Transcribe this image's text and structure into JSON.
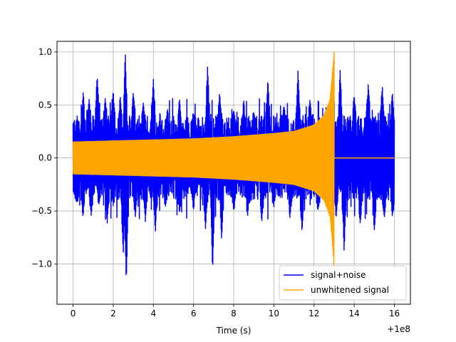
{
  "chart_data": {
    "type": "line",
    "title": "",
    "xlabel": "Time (s)",
    "ylabel": "",
    "x_offset_label": "+1e8",
    "xlim": [
      -0.8,
      16.8
    ],
    "ylim": [
      -1.38,
      1.1
    ],
    "x_ticks": [
      0,
      2,
      4,
      6,
      8,
      10,
      12,
      14,
      16
    ],
    "y_ticks": [
      -1.0,
      -0.5,
      0.0,
      0.5,
      1.0
    ],
    "x_tick_labels": [
      "0",
      "2",
      "4",
      "6",
      "8",
      "10",
      "12",
      "14",
      "16"
    ],
    "y_tick_labels": [
      "−1.0",
      "−0.5",
      "0.0",
      "0.5",
      "1.0"
    ],
    "grid": true,
    "legend_position": "lower-right",
    "series": [
      {
        "name": "signal+noise",
        "color": "#0000ff",
        "x_range": [
          0,
          16
        ],
        "upper_envelope_peaks": [
          {
            "x": 0.2,
            "y": 0.38
          },
          {
            "x": 0.5,
            "y": 0.62
          },
          {
            "x": 0.8,
            "y": 0.55
          },
          {
            "x": 1.2,
            "y": 0.78
          },
          {
            "x": 1.6,
            "y": 0.56
          },
          {
            "x": 2.0,
            "y": 0.64
          },
          {
            "x": 2.35,
            "y": 0.58
          },
          {
            "x": 2.6,
            "y": 1.0
          },
          {
            "x": 3.0,
            "y": 0.62
          },
          {
            "x": 3.5,
            "y": 0.52
          },
          {
            "x": 4.0,
            "y": 0.74
          },
          {
            "x": 4.7,
            "y": 0.46
          },
          {
            "x": 5.3,
            "y": 0.55
          },
          {
            "x": 6.0,
            "y": 0.42
          },
          {
            "x": 6.7,
            "y": 0.87
          },
          {
            "x": 7.3,
            "y": 0.62
          },
          {
            "x": 8.0,
            "y": 0.44
          },
          {
            "x": 8.5,
            "y": 0.54
          },
          {
            "x": 9.0,
            "y": 0.43
          },
          {
            "x": 9.7,
            "y": 0.74
          },
          {
            "x": 10.5,
            "y": 0.5
          },
          {
            "x": 11.2,
            "y": 0.82
          },
          {
            "x": 11.8,
            "y": 0.55
          },
          {
            "x": 12.6,
            "y": 0.48
          },
          {
            "x": 13.3,
            "y": 0.84
          },
          {
            "x": 14.0,
            "y": 0.6
          },
          {
            "x": 14.7,
            "y": 0.7
          },
          {
            "x": 15.4,
            "y": 0.68
          },
          {
            "x": 15.9,
            "y": 0.62
          }
        ],
        "lower_envelope_peaks": [
          {
            "x": 0.2,
            "y": -0.42
          },
          {
            "x": 0.5,
            "y": -0.56
          },
          {
            "x": 0.9,
            "y": -0.55
          },
          {
            "x": 1.3,
            "y": -0.44
          },
          {
            "x": 1.7,
            "y": -0.62
          },
          {
            "x": 2.0,
            "y": -0.45
          },
          {
            "x": 2.5,
            "y": -0.9
          },
          {
            "x": 2.65,
            "y": -1.18
          },
          {
            "x": 3.1,
            "y": -0.56
          },
          {
            "x": 3.6,
            "y": -0.6
          },
          {
            "x": 4.1,
            "y": -0.7
          },
          {
            "x": 4.6,
            "y": -0.46
          },
          {
            "x": 5.3,
            "y": -0.52
          },
          {
            "x": 6.0,
            "y": -0.48
          },
          {
            "x": 6.6,
            "y": -0.68
          },
          {
            "x": 6.95,
            "y": -1.07
          },
          {
            "x": 7.4,
            "y": -0.78
          },
          {
            "x": 8.0,
            "y": -0.5
          },
          {
            "x": 8.7,
            "y": -0.55
          },
          {
            "x": 9.4,
            "y": -0.6
          },
          {
            "x": 10.0,
            "y": -0.46
          },
          {
            "x": 10.8,
            "y": -0.56
          },
          {
            "x": 11.4,
            "y": -0.7
          },
          {
            "x": 12.2,
            "y": -0.5
          },
          {
            "x": 13.1,
            "y": -0.56
          },
          {
            "x": 13.5,
            "y": -0.88
          },
          {
            "x": 14.3,
            "y": -0.62
          },
          {
            "x": 15.0,
            "y": -0.7
          },
          {
            "x": 15.5,
            "y": -0.58
          },
          {
            "x": 15.9,
            "y": -0.55
          }
        ]
      },
      {
        "name": "unwhitened signal",
        "color": "#ffa500",
        "x_range": [
          0,
          16
        ],
        "chirp_end_x": 13.0,
        "chirp_peak_y": 1.0,
        "chirp_trough_y": -1.03,
        "envelope": [
          {
            "x": 0,
            "y": 0.15
          },
          {
            "x": 2,
            "y": 0.16
          },
          {
            "x": 4,
            "y": 0.17
          },
          {
            "x": 6,
            "y": 0.18
          },
          {
            "x": 8,
            "y": 0.2
          },
          {
            "x": 10,
            "y": 0.23
          },
          {
            "x": 11,
            "y": 0.25
          },
          {
            "x": 12,
            "y": 0.31
          },
          {
            "x": 12.5,
            "y": 0.4
          },
          {
            "x": 12.8,
            "y": 0.55
          },
          {
            "x": 13.0,
            "y": 1.0
          }
        ],
        "after_chirp_value": 0.0
      }
    ]
  }
}
